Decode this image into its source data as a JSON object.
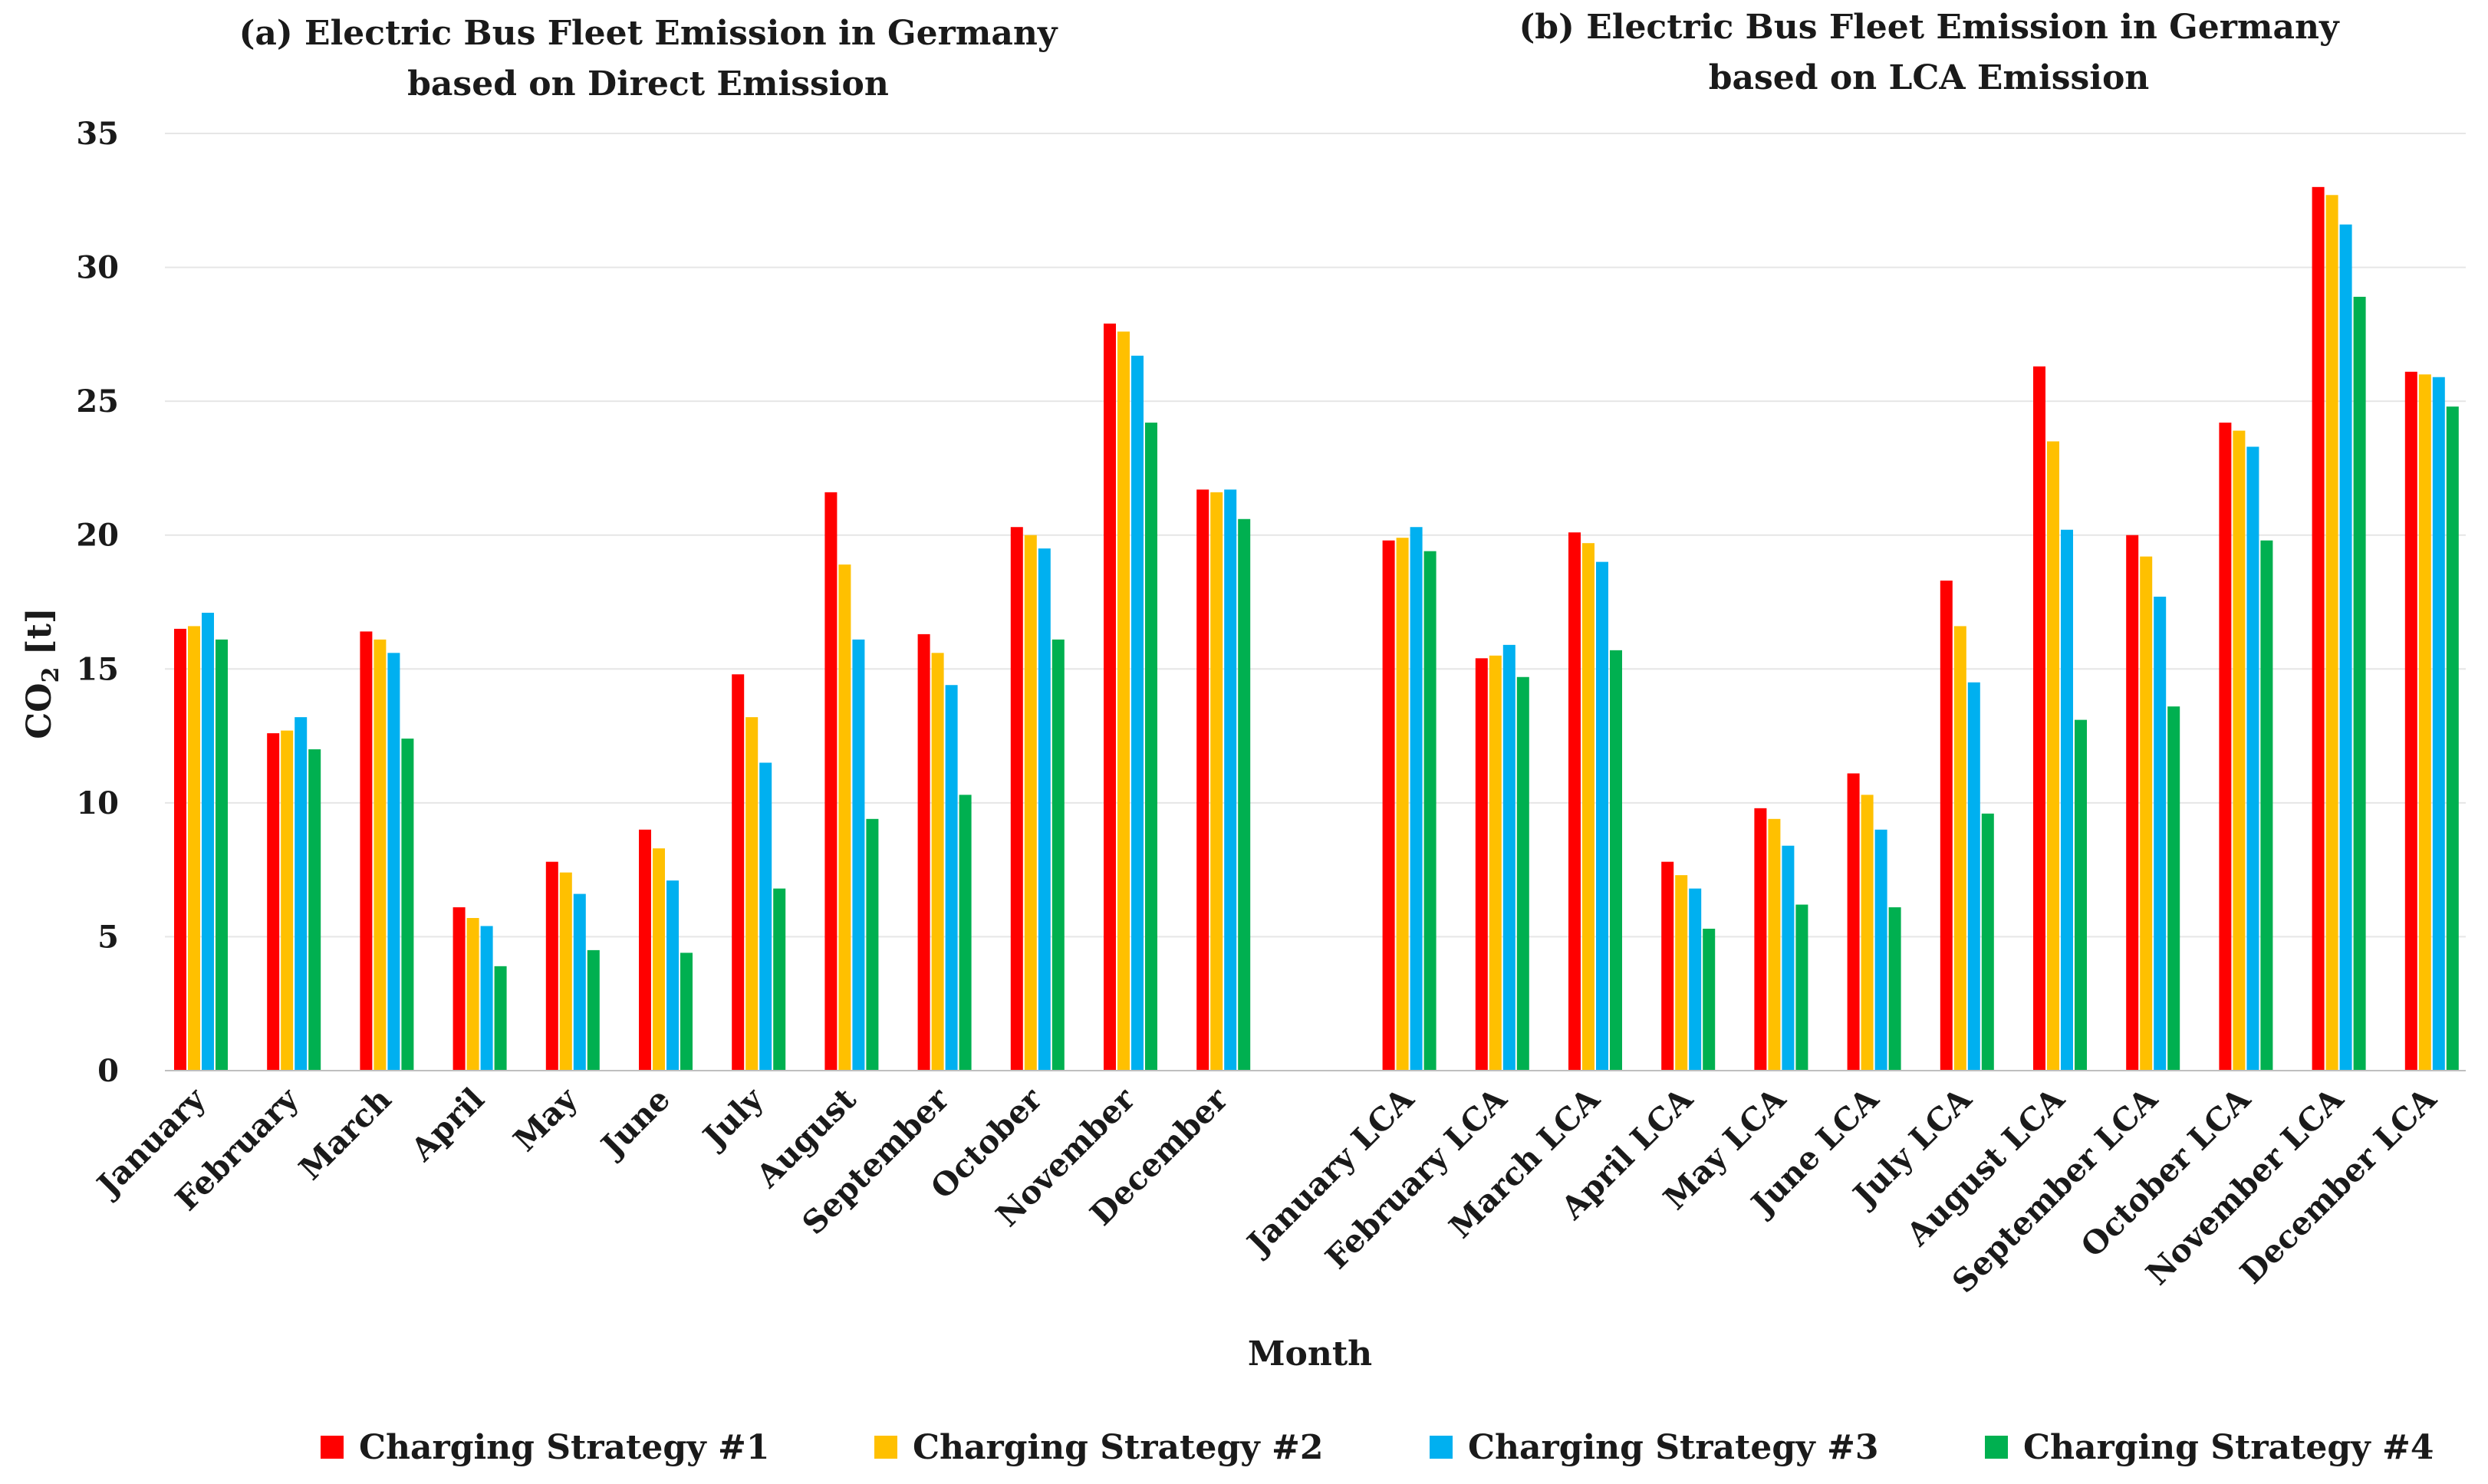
{
  "chart_data": {
    "type": "bar",
    "titles": [
      {
        "line1": "(a)  Electric Bus Fleet Emission in Germany",
        "line2": "based on Direct Emission"
      },
      {
        "line1": "(b)  Electric Bus Fleet Emission in Germany",
        "line2": "based on LCA Emission"
      }
    ],
    "xlabel": "Month",
    "ylabel_main": "CO",
    "ylabel_sub": "2",
    "ylabel_unit": " [t]",
    "ylim": [
      0,
      35
    ],
    "yticks": [
      0,
      5,
      10,
      15,
      20,
      25,
      30,
      35
    ],
    "grid": true,
    "legend_position": "bottom",
    "categories": [
      "January",
      "February",
      "March",
      "April",
      "May",
      "June",
      "July",
      "August",
      "September",
      "October",
      "November",
      "December",
      "",
      "January LCA",
      "February LCA",
      "March LCA",
      "April LCA",
      "May LCA",
      "June LCA",
      "July LCA",
      "August LCA",
      "September LCA",
      "October LCA",
      "November LCA",
      "December LCA"
    ],
    "series": [
      {
        "name": "Charging Strategy #1",
        "color": "#ff0000",
        "values": [
          16.5,
          12.6,
          16.4,
          6.1,
          7.8,
          9.0,
          14.8,
          21.6,
          16.3,
          20.3,
          27.9,
          21.7,
          null,
          19.8,
          15.4,
          20.1,
          7.8,
          9.8,
          11.1,
          18.3,
          26.3,
          20.0,
          24.2,
          33.0,
          26.1
        ]
      },
      {
        "name": "Charging Strategy #2",
        "color": "#ffc000",
        "values": [
          16.6,
          12.7,
          16.1,
          5.7,
          7.4,
          8.3,
          13.2,
          18.9,
          15.6,
          20.0,
          27.6,
          21.6,
          null,
          19.9,
          15.5,
          19.7,
          7.3,
          9.4,
          10.3,
          16.6,
          23.5,
          19.2,
          23.9,
          32.7,
          26.0
        ]
      },
      {
        "name": "Charging Strategy #3",
        "color": "#00b0f0",
        "values": [
          17.1,
          13.2,
          15.6,
          5.4,
          6.6,
          7.1,
          11.5,
          16.1,
          14.4,
          19.5,
          26.7,
          21.7,
          null,
          20.3,
          15.9,
          19.0,
          6.8,
          8.4,
          9.0,
          14.5,
          20.2,
          17.7,
          23.3,
          31.6,
          25.9
        ]
      },
      {
        "name": "Charging Strategy #4",
        "color": "#00b050",
        "values": [
          16.1,
          12.0,
          12.4,
          3.9,
          4.5,
          4.4,
          6.8,
          9.4,
          10.3,
          16.1,
          24.2,
          20.6,
          null,
          19.4,
          14.7,
          15.7,
          5.3,
          6.2,
          6.1,
          9.6,
          13.1,
          13.6,
          19.8,
          28.9,
          24.8
        ]
      }
    ]
  }
}
